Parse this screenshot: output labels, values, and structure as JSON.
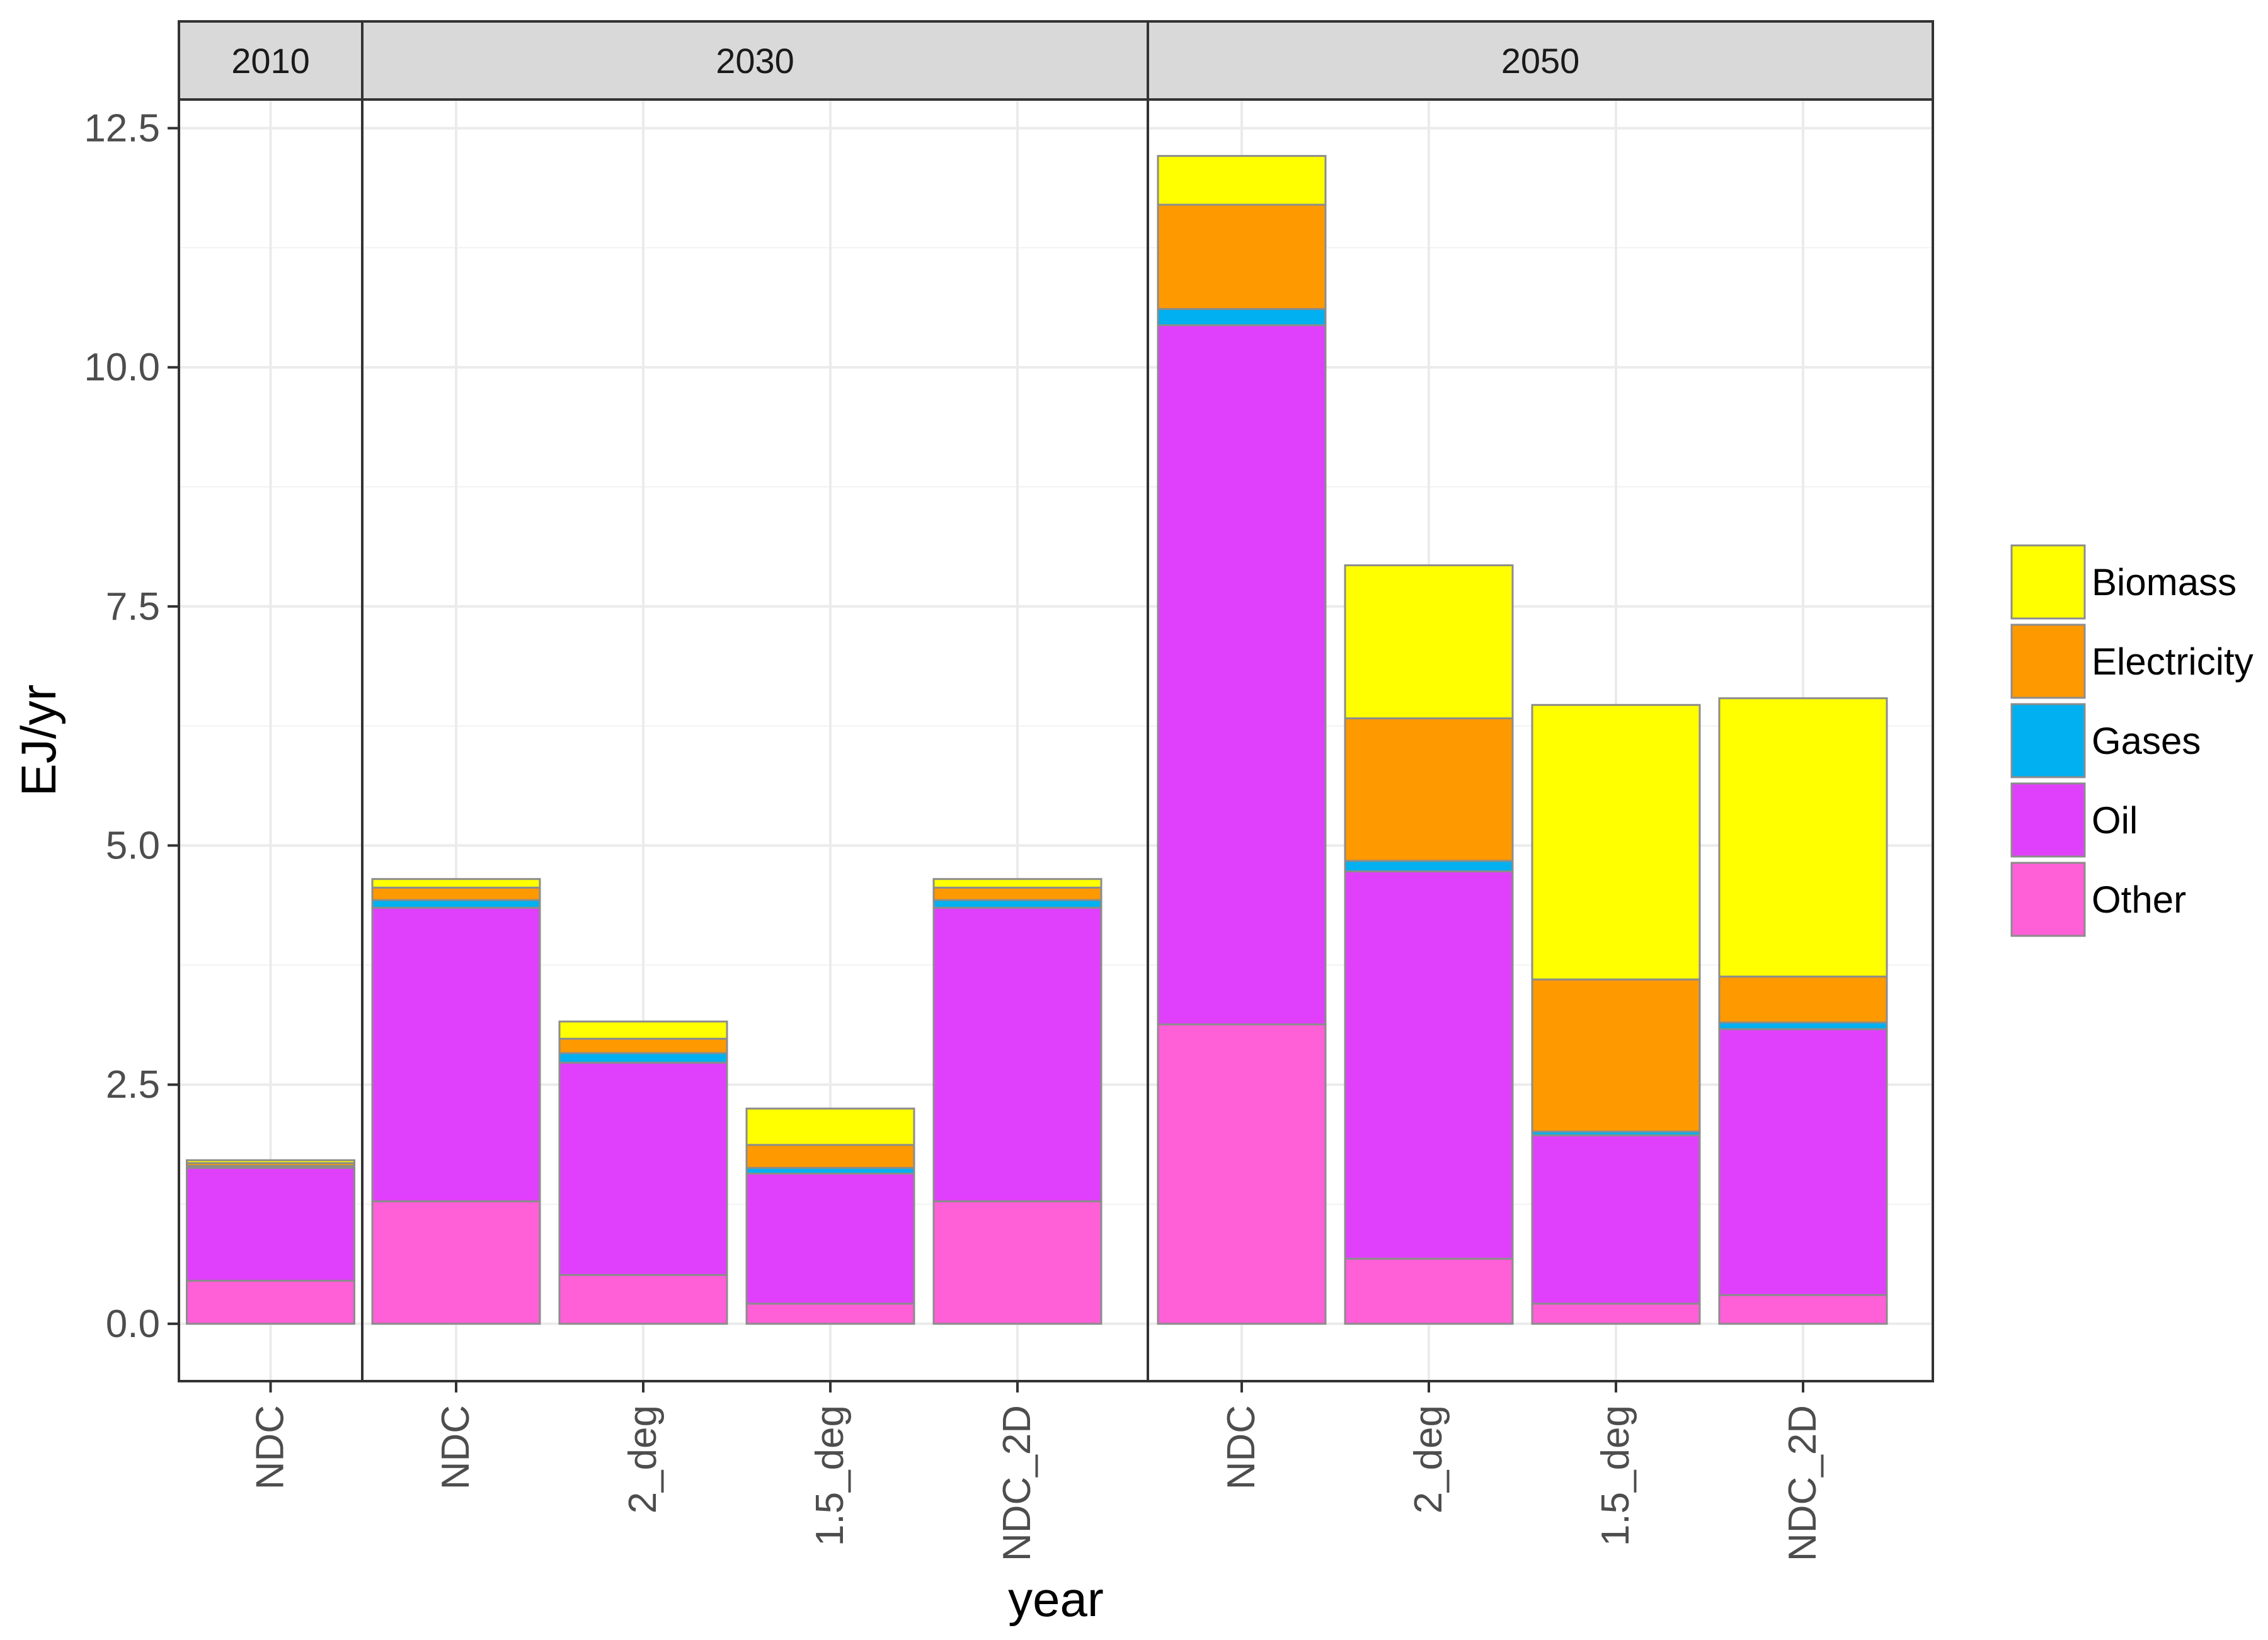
{
  "chart_data": {
    "type": "bar",
    "stacked": true,
    "faceted": true,
    "ylabel": "EJ/yr",
    "xlabel": "year",
    "ylim": [
      -0.6,
      12.8
    ],
    "yticks": [
      0.0,
      2.5,
      5.0,
      7.5,
      10.0,
      12.5
    ],
    "ytick_labels": [
      "0.0",
      "2.5",
      "5.0",
      "7.5",
      "10.0",
      "12.5"
    ],
    "grid": true,
    "legend_position": "right",
    "series_order_bottom_to_top": [
      "Other",
      "Oil",
      "Gases",
      "Electricity",
      "Biomass"
    ],
    "legend": [
      {
        "name": "Biomass",
        "color": "#FFFF00"
      },
      {
        "name": "Electricity",
        "color": "#FF9900"
      },
      {
        "name": "Gases",
        "color": "#00B0F0"
      },
      {
        "name": "Oil",
        "color": "#E040FB"
      },
      {
        "name": "Other",
        "color": "#FF5FD7"
      }
    ],
    "panels": [
      {
        "label": "2010",
        "categories": [
          "NDC"
        ],
        "bars": [
          {
            "Other": 0.45,
            "Oil": 1.18,
            "Gases": 0.02,
            "Electricity": 0.03,
            "Biomass": 0.03
          }
        ]
      },
      {
        "label": "2030",
        "categories": [
          "NDC",
          "2_deg",
          "1.5_deg",
          "NDC_2D"
        ],
        "bars": [
          {
            "Other": 1.28,
            "Oil": 3.07,
            "Gases": 0.08,
            "Electricity": 0.13,
            "Biomass": 0.09
          },
          {
            "Other": 0.51,
            "Oil": 2.22,
            "Gases": 0.1,
            "Electricity": 0.15,
            "Biomass": 0.18
          },
          {
            "Other": 0.21,
            "Oil": 1.36,
            "Gases": 0.06,
            "Electricity": 0.24,
            "Biomass": 0.38
          },
          {
            "Other": 1.28,
            "Oil": 3.07,
            "Gases": 0.08,
            "Electricity": 0.13,
            "Biomass": 0.09
          }
        ]
      },
      {
        "label": "2050",
        "categories": [
          "NDC",
          "2_deg",
          "1.5_deg",
          "NDC_2D"
        ],
        "bars": [
          {
            "Other": 3.13,
            "Oil": 7.31,
            "Gases": 0.17,
            "Electricity": 1.09,
            "Biomass": 0.51
          },
          {
            "Other": 0.68,
            "Oil": 4.05,
            "Gases": 0.11,
            "Electricity": 1.49,
            "Biomass": 1.6
          },
          {
            "Other": 0.21,
            "Oil": 1.76,
            "Gases": 0.04,
            "Electricity": 1.59,
            "Biomass": 2.87
          },
          {
            "Other": 0.3,
            "Oil": 2.78,
            "Gases": 0.07,
            "Electricity": 0.48,
            "Biomass": 2.91
          }
        ]
      }
    ]
  }
}
